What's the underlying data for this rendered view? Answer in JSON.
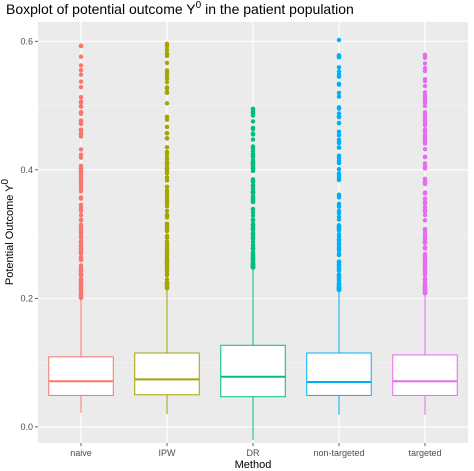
{
  "chart_data": {
    "type": "boxplot",
    "title": "Boxplot of potential outcome Y",
    "title_superscript": "0",
    "title_suffix": " in the patient population",
    "xlabel": "Method",
    "ylabel": "Potential Outcome Y",
    "ylabel_superscript": "0",
    "ylim": [
      -0.025,
      0.63
    ],
    "y_ticks": [
      0.0,
      0.2,
      0.4,
      0.6
    ],
    "y_tick_labels": [
      "0.0",
      "0.2",
      "0.4",
      "0.6"
    ],
    "grid": true,
    "background": "#ebebeb",
    "categories": [
      "naive",
      "IPW",
      "DR",
      "non-targeted",
      "targeted"
    ],
    "colors": [
      "#F8766D",
      "#A3A500",
      "#00BF7D",
      "#00B0F6",
      "#E76BF3"
    ],
    "boxes": [
      {
        "name": "naive",
        "whisker_low": 0.022,
        "q1": 0.049,
        "median": 0.071,
        "q3": 0.109,
        "whisker_high": 0.198,
        "outlier_max": 0.593
      },
      {
        "name": "IPW",
        "whisker_low": 0.02,
        "q1": 0.05,
        "median": 0.074,
        "q3": 0.115,
        "whisker_high": 0.213,
        "outlier_max": 0.596
      },
      {
        "name": "DR",
        "whisker_low": -0.02,
        "q1": 0.047,
        "median": 0.078,
        "q3": 0.127,
        "whisker_high": 0.245,
        "outlier_max": 0.495
      },
      {
        "name": "non-targeted",
        "whisker_low": 0.019,
        "q1": 0.049,
        "median": 0.07,
        "q3": 0.115,
        "whisker_high": 0.21,
        "outlier_max": 0.602
      },
      {
        "name": "targeted",
        "whisker_low": 0.019,
        "q1": 0.049,
        "median": 0.071,
        "q3": 0.112,
        "whisker_high": 0.205,
        "outlier_max": 0.579
      }
    ]
  }
}
